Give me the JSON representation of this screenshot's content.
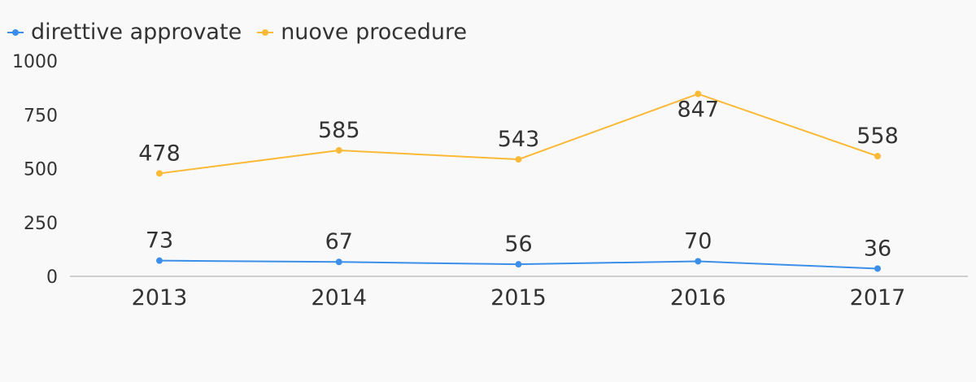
{
  "chart_data": {
    "type": "line",
    "title": "",
    "xlabel": "",
    "ylabel": "",
    "categories": [
      "2013",
      "2014",
      "2015",
      "2016",
      "2017"
    ],
    "ylim": [
      0,
      1000
    ],
    "yticks": [
      "0",
      "250",
      "500",
      "750",
      "1000"
    ],
    "grid": false,
    "legend": "top-left",
    "series": [
      {
        "name": "direttive approvate",
        "color": "#3b8fe8",
        "values": [
          73,
          67,
          56,
          70,
          36
        ]
      },
      {
        "name": "nuove procedure",
        "color": "#fbb938",
        "values": [
          478,
          585,
          543,
          847,
          558
        ]
      }
    ]
  }
}
